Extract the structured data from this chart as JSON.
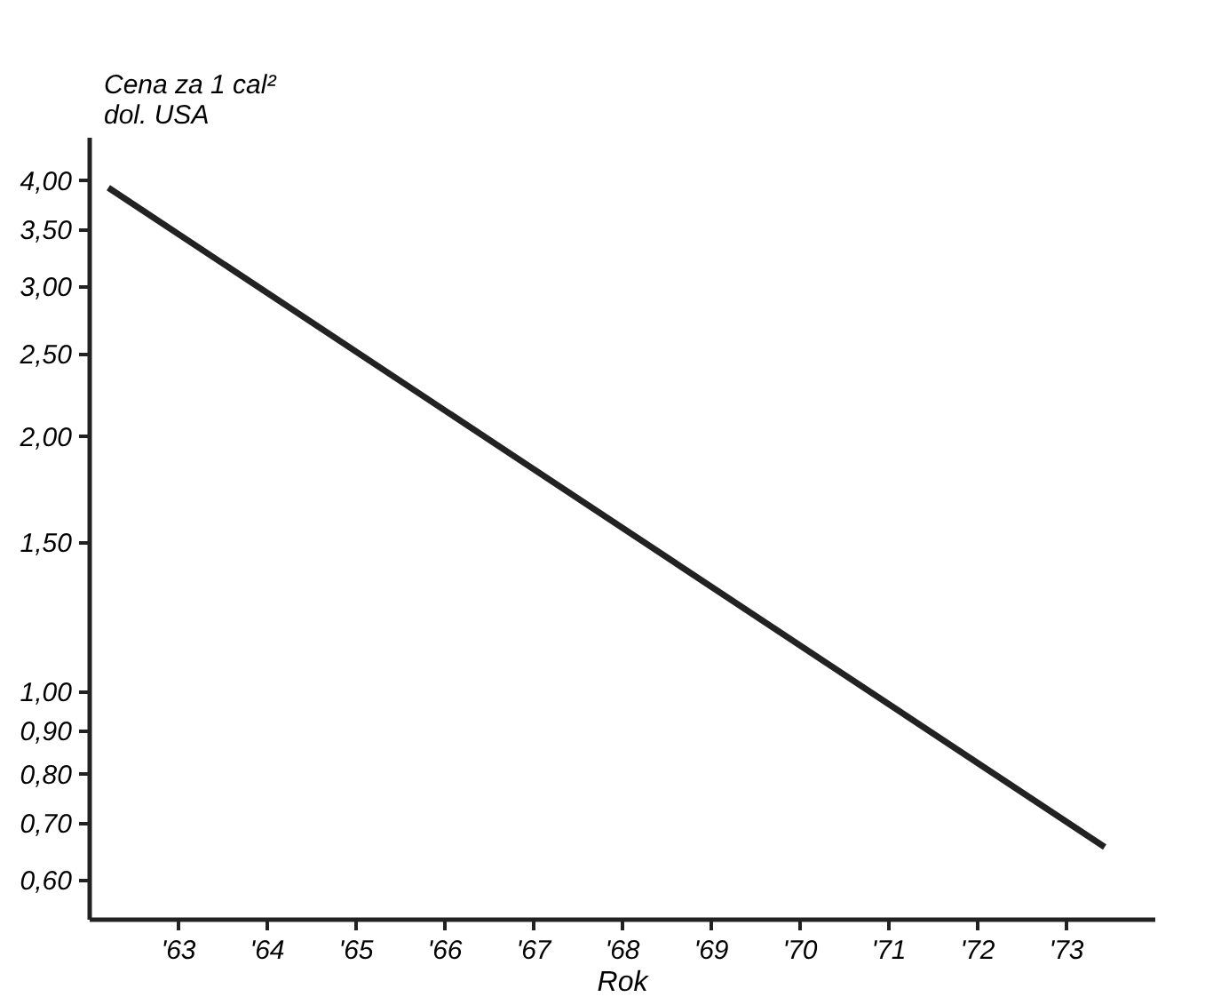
{
  "chart_data": {
    "type": "line",
    "xlabel": "Rok",
    "ylabel": "Cena za 1 cal²\ndol. USA",
    "x": [
      62.22,
      73.44
    ],
    "series": [
      {
        "color": "#222222",
        "values": [
          3.92,
          0.656
        ]
      }
    ],
    "log": "y",
    "xlim": [
      62,
      74
    ],
    "ylim": [
      0.54,
      4.5
    ],
    "xticks": [
      {
        "value": 63,
        "label": "'63"
      },
      {
        "value": 64,
        "label": "'64"
      },
      {
        "value": 65,
        "label": "'65"
      },
      {
        "value": 66,
        "label": "'66"
      },
      {
        "value": 67,
        "label": "'67"
      },
      {
        "value": 68,
        "label": "'68"
      },
      {
        "value": 69,
        "label": "'69"
      },
      {
        "value": 70,
        "label": "'70"
      },
      {
        "value": 71,
        "label": "'71"
      },
      {
        "value": 72,
        "label": "'72"
      },
      {
        "value": 73,
        "label": "'73"
      }
    ],
    "yticks": [
      {
        "value": 0.6,
        "label": "0,60"
      },
      {
        "value": 0.7,
        "label": "0,70"
      },
      {
        "value": 0.8,
        "label": "0,80"
      },
      {
        "value": 0.9,
        "label": "0,90"
      },
      {
        "value": 1.0,
        "label": "1,00"
      },
      {
        "value": 1.5,
        "label": "1,50"
      },
      {
        "value": 2.0,
        "label": "2,00"
      },
      {
        "value": 2.5,
        "label": "2,50"
      },
      {
        "value": 3.0,
        "label": "3,00"
      },
      {
        "value": 3.5,
        "label": "3,50"
      },
      {
        "value": 4.0,
        "label": "4,00"
      }
    ],
    "grid": false,
    "marker": "none",
    "line_style": "solid"
  }
}
